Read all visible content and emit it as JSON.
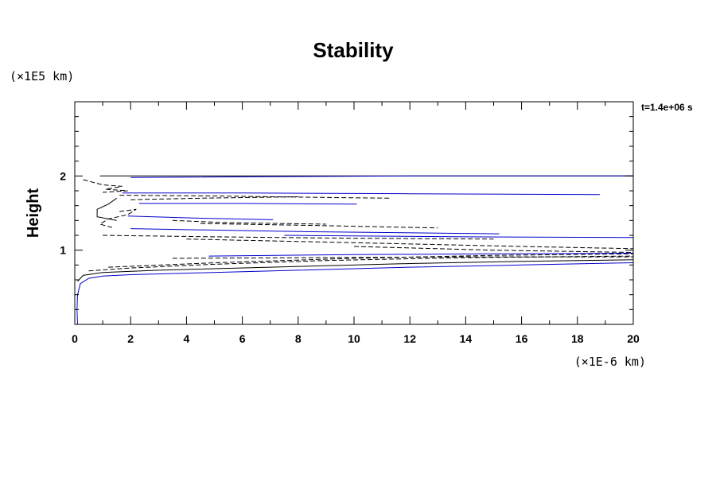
{
  "chart_data": {
    "type": "line",
    "title": "Stability",
    "ylabel": "Height",
    "xlabel": "",
    "x_unit": "(×1E-6 km)",
    "y_unit": "(×1E5 km)",
    "annotation": "t=1.4e+06 s",
    "xlim": [
      0,
      20
    ],
    "ylim": [
      0,
      3
    ],
    "x_ticks": [
      "0",
      "2",
      "4",
      "6",
      "8",
      "10",
      "12",
      "14",
      "16",
      "18",
      "20"
    ],
    "y_ticks": [
      "1",
      "2"
    ],
    "grid": false,
    "colors": {
      "blue": "#0000cc",
      "black": "#000000"
    },
    "series": [
      {
        "color": "blue",
        "style": "solid",
        "x": [
          0.1,
          0.08,
          0.1,
          0.2,
          0.5,
          1.0,
          2.0,
          4.0,
          8.0,
          12.0,
          16.0,
          20.0
        ],
        "y": [
          0.0,
          0.2,
          0.4,
          0.55,
          0.62,
          0.65,
          0.67,
          0.69,
          0.73,
          0.77,
          0.8,
          0.83
        ]
      },
      {
        "color": "black",
        "style": "solid",
        "x": [
          0.1,
          0.3,
          1.0,
          3.0,
          7.0,
          12.0,
          16.0,
          20.0
        ],
        "y": [
          0.58,
          0.66,
          0.7,
          0.73,
          0.77,
          0.82,
          0.85,
          0.87
        ]
      },
      {
        "color": "black",
        "style": "dashed",
        "x": [
          0.5,
          2.0,
          5.0,
          9.0,
          14.0,
          20.0
        ],
        "y": [
          0.72,
          0.76,
          0.81,
          0.86,
          0.9,
          0.92
        ]
      },
      {
        "color": "black",
        "style": "dashed",
        "x": [
          1.2,
          5.0,
          10.0,
          15.0,
          20.0
        ],
        "y": [
          0.77,
          0.83,
          0.89,
          0.93,
          0.95
        ]
      },
      {
        "color": "blue",
        "style": "solid",
        "x": [
          4.8,
          10.0,
          15.0,
          20.0
        ],
        "y": [
          0.92,
          0.94,
          0.95,
          0.96
        ]
      },
      {
        "color": "black",
        "style": "dashed",
        "x": [
          3.5,
          9.0,
          14.0,
          20.0
        ],
        "y": [
          0.89,
          0.9,
          0.91,
          0.91
        ]
      },
      {
        "color": "black",
        "style": "solid",
        "x": [
          0.9,
          20.0
        ],
        "y": [
          2.0,
          2.0
        ]
      },
      {
        "color": "blue",
        "style": "solid",
        "x": [
          2.0,
          12.0,
          20.0
        ],
        "y": [
          1.98,
          2.0,
          2.0
        ]
      },
      {
        "color": "black",
        "style": "dashed",
        "x": [
          0.3,
          1.0,
          1.7,
          1.1,
          1.9,
          1.0
        ],
        "y": [
          1.95,
          1.88,
          1.86,
          1.82,
          1.8,
          1.78
        ]
      },
      {
        "color": "blue",
        "style": "solid",
        "x": [
          1.7,
          6.0,
          12.0,
          18.8
        ],
        "y": [
          1.77,
          1.77,
          1.76,
          1.75
        ]
      },
      {
        "color": "black",
        "style": "dashed",
        "x": [
          1.6,
          5.0,
          9.0,
          11.3
        ],
        "y": [
          1.74,
          1.73,
          1.71,
          1.7
        ]
      },
      {
        "color": "black",
        "style": "dashed",
        "x": [
          2.0,
          4.5,
          8.0
        ],
        "y": [
          1.68,
          1.7,
          1.72
        ]
      },
      {
        "color": "blue",
        "style": "solid",
        "x": [
          2.3,
          6.0,
          10.1
        ],
        "y": [
          1.63,
          1.63,
          1.62
        ]
      },
      {
        "color": "black",
        "style": "solid",
        "x": [
          1.5,
          1.2,
          0.8,
          0.8,
          1.5
        ],
        "y": [
          1.7,
          1.62,
          1.55,
          1.45,
          1.4
        ]
      },
      {
        "color": "black",
        "style": "dashed",
        "x": [
          1.6,
          2.2,
          1.9,
          1.2,
          0.9,
          1.4
        ],
        "y": [
          1.52,
          1.55,
          1.48,
          1.42,
          1.35,
          1.3
        ]
      },
      {
        "color": "blue",
        "style": "solid",
        "x": [
          1.9,
          4.5,
          7.1
        ],
        "y": [
          1.46,
          1.43,
          1.41
        ]
      },
      {
        "color": "black",
        "style": "dashed",
        "x": [
          3.5,
          5.5,
          9.0
        ],
        "y": [
          1.4,
          1.37,
          1.35
        ]
      },
      {
        "color": "black",
        "style": "dashed",
        "x": [
          4.5,
          9.0,
          13.0
        ],
        "y": [
          1.36,
          1.33,
          1.3
        ]
      },
      {
        "color": "blue",
        "style": "solid",
        "x": [
          2.0,
          8.0,
          15.2
        ],
        "y": [
          1.29,
          1.25,
          1.22
        ]
      },
      {
        "color": "black",
        "style": "dashed",
        "x": [
          1.0,
          5.0,
          10.0,
          15.0
        ],
        "y": [
          1.2,
          1.18,
          1.16,
          1.15
        ]
      },
      {
        "color": "blue",
        "style": "solid",
        "x": [
          7.5,
          14.0,
          20.0
        ],
        "y": [
          1.2,
          1.18,
          1.17
        ]
      },
      {
        "color": "black",
        "style": "dashed",
        "x": [
          4.0,
          10.0,
          16.0,
          20.0
        ],
        "y": [
          1.15,
          1.1,
          1.05,
          1.02
        ]
      },
      {
        "color": "black",
        "style": "dashed",
        "x": [
          10.0,
          15.0,
          20.0
        ],
        "y": [
          1.05,
          1.0,
          0.97
        ]
      }
    ]
  }
}
